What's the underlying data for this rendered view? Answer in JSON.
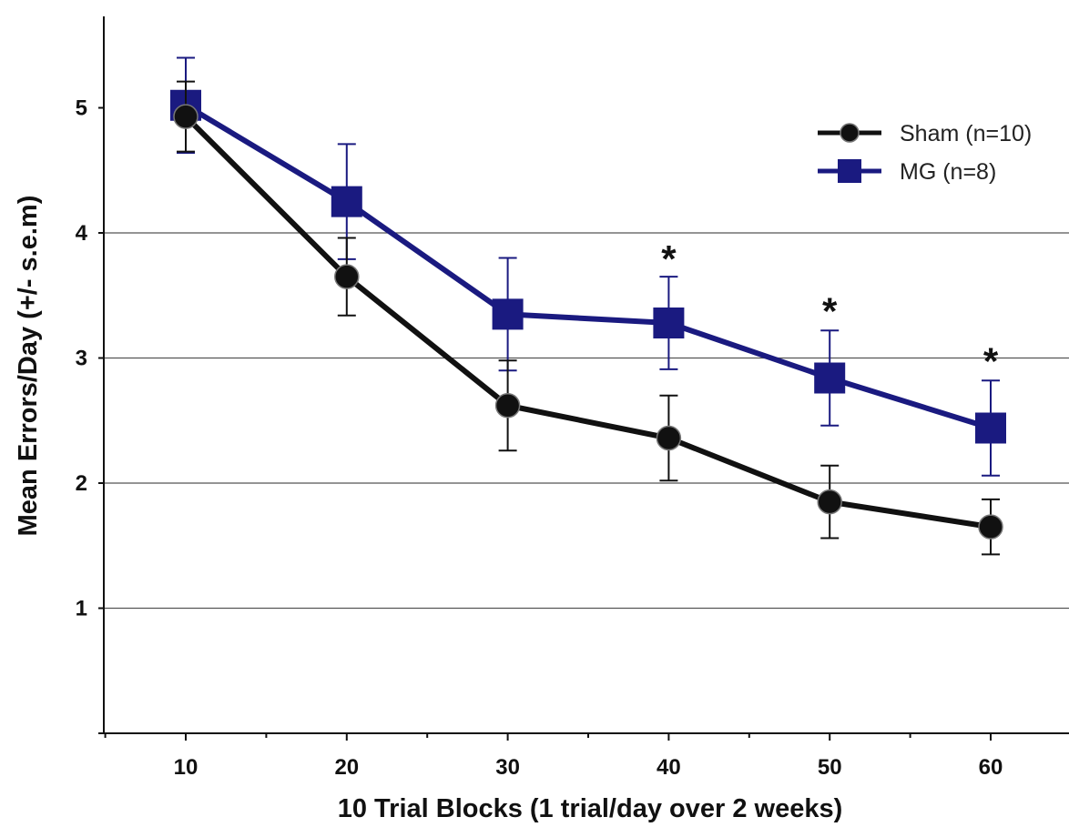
{
  "chart_data": {
    "type": "line",
    "title": "",
    "xlabel": "10 Trial Blocks (1 trial/day over 2 weeks)",
    "ylabel": "Mean Errors/Day (+/- s.e.m)",
    "x": [
      10,
      20,
      30,
      40,
      50,
      60
    ],
    "x_tick_labels": [
      "10",
      "20",
      "30",
      "40",
      "50",
      "60"
    ],
    "y_tick_labels": [
      "1",
      "2",
      "3",
      "4",
      "5"
    ],
    "ylim": [
      0,
      5.75
    ],
    "xlim": [
      5,
      65
    ],
    "grid": {
      "horizontal": true,
      "values": [
        1,
        2,
        3,
        4
      ]
    },
    "legend_placement": "top-right",
    "series": [
      {
        "name": "Sham (n=10)",
        "color": "#111111",
        "marker": "circle",
        "values": [
          4.93,
          3.65,
          2.62,
          2.36,
          1.85,
          1.65
        ],
        "error": [
          0.28,
          0.31,
          0.36,
          0.34,
          0.29,
          0.22
        ]
      },
      {
        "name": "MG (n=8)",
        "color": "#1a1a80",
        "marker": "square",
        "values": [
          5.02,
          4.25,
          3.35,
          3.28,
          2.84,
          2.44
        ],
        "error": [
          0.38,
          0.46,
          0.45,
          0.37,
          0.38,
          0.38
        ]
      }
    ],
    "annotations": [
      {
        "text": "*",
        "x": 40,
        "y": 3.82
      },
      {
        "text": "*",
        "x": 50,
        "y": 3.4
      },
      {
        "text": "*",
        "x": 60,
        "y": 3.0
      }
    ]
  }
}
